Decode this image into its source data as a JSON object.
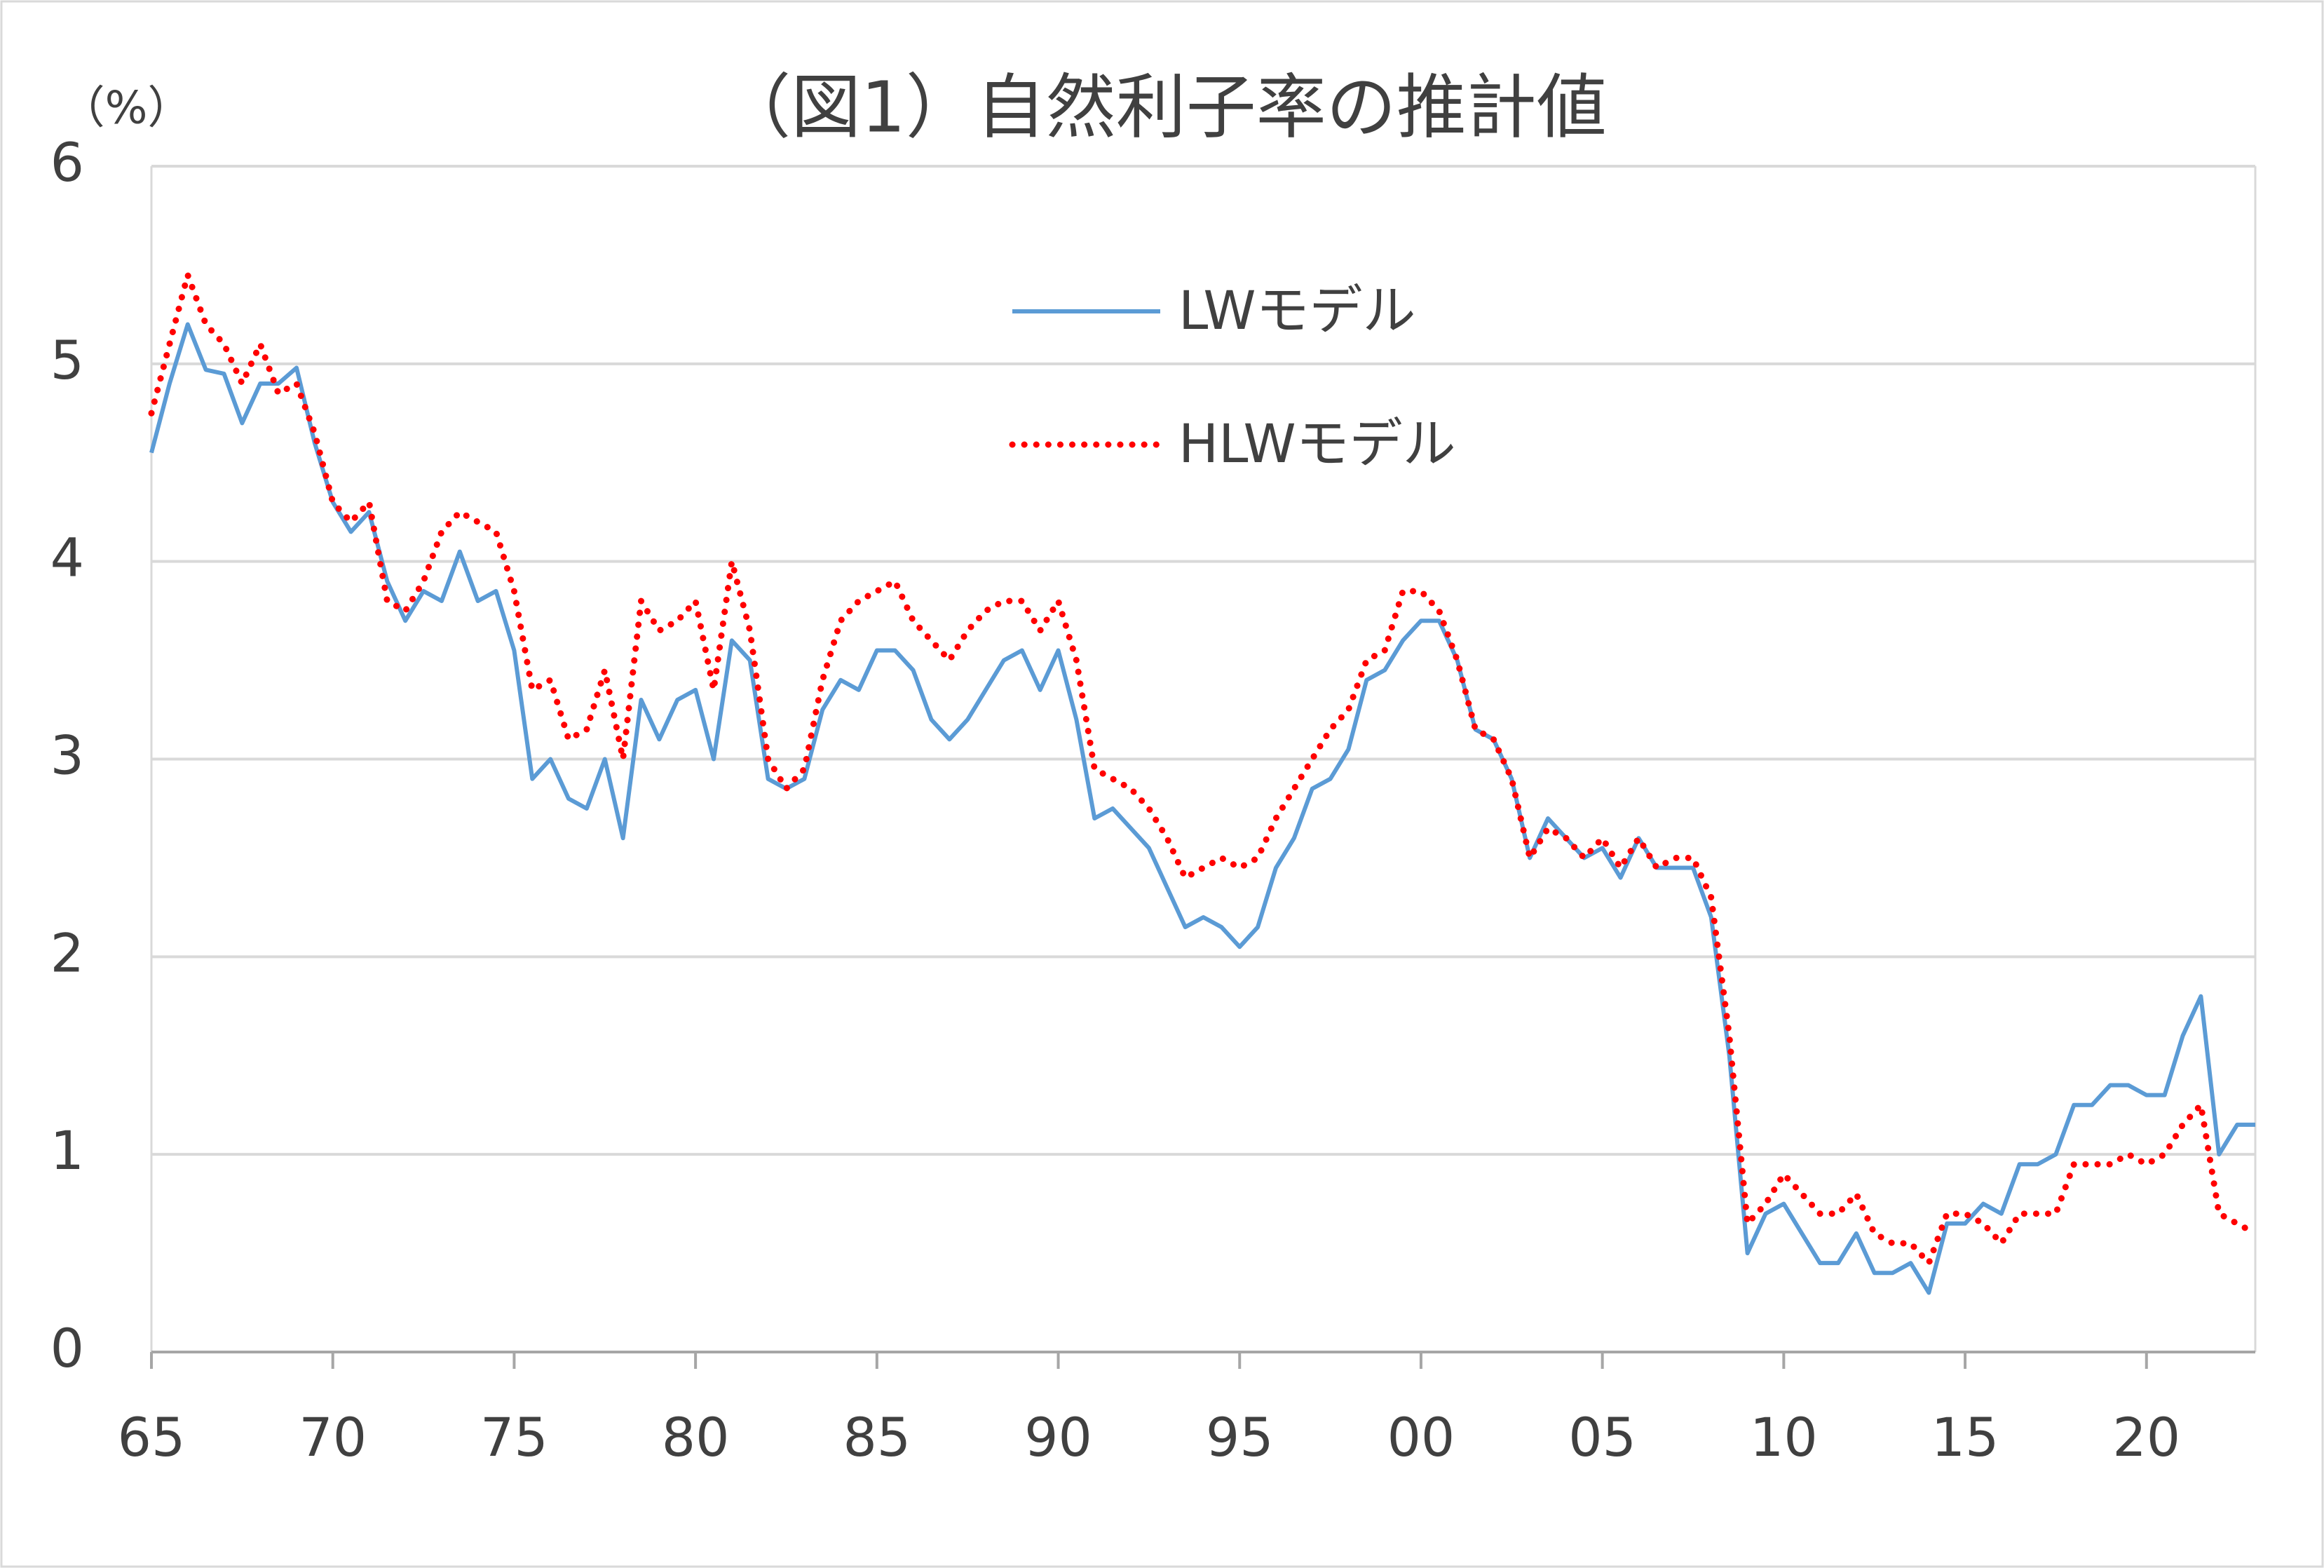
{
  "chart_data": {
    "type": "line",
    "title": "（図1）自然利子率の推計値",
    "y_unit_label": "（%）",
    "x": [
      1965,
      1965.5,
      1966,
      1966.5,
      1967,
      1967.5,
      1968,
      1968.5,
      1969,
      1969.5,
      1970,
      1970.5,
      1971,
      1971.5,
      1972,
      1972.5,
      1973,
      1973.5,
      1974,
      1974.5,
      1975,
      1975.5,
      1976,
      1976.5,
      1977,
      1977.5,
      1978,
      1978.5,
      1979,
      1979.5,
      1980,
      1980.5,
      1981,
      1981.5,
      1982,
      1982.5,
      1983,
      1983.5,
      1984,
      1984.5,
      1985,
      1985.5,
      1986,
      1986.5,
      1987,
      1987.5,
      1988,
      1988.5,
      1989,
      1989.5,
      1990,
      1990.5,
      1991,
      1991.5,
      1992,
      1992.5,
      1993,
      1993.5,
      1994,
      1994.5,
      1995,
      1995.5,
      1996,
      1996.5,
      1997,
      1997.5,
      1998,
      1998.5,
      1999,
      1999.5,
      2000,
      2000.5,
      2001,
      2001.5,
      2002,
      2002.5,
      2003,
      2003.5,
      2004,
      2004.5,
      2005,
      2005.5,
      2006,
      2006.5,
      2007,
      2007.5,
      2008,
      2008.5,
      2009,
      2009.5,
      2010,
      2010.5,
      2011,
      2011.5,
      2012,
      2012.5,
      2013,
      2013.5,
      2014,
      2014.5,
      2015,
      2015.5,
      2016,
      2016.5,
      2017,
      2017.5,
      2018,
      2018.5,
      2019,
      2019.5,
      2020,
      2020.5,
      2021,
      2021.5,
      2022,
      2022.5,
      2023
    ],
    "series": [
      {
        "name": "LWモデル",
        "color": "#5b9bd5",
        "style": "solid",
        "values": [
          4.55,
          4.9,
          5.2,
          4.97,
          4.95,
          4.7,
          4.9,
          4.9,
          4.98,
          4.6,
          4.3,
          4.15,
          4.25,
          3.9,
          3.7,
          3.85,
          3.8,
          4.05,
          3.8,
          3.85,
          3.55,
          2.9,
          3.0,
          2.8,
          2.75,
          3.0,
          2.6,
          3.3,
          3.1,
          3.3,
          3.35,
          3.0,
          3.6,
          3.5,
          2.9,
          2.85,
          2.9,
          3.25,
          3.4,
          3.35,
          3.55,
          3.55,
          3.45,
          3.2,
          3.1,
          3.2,
          3.35,
          3.5,
          3.55,
          3.35,
          3.55,
          3.2,
          2.7,
          2.75,
          2.65,
          2.55,
          2.35,
          2.15,
          2.2,
          2.15,
          2.05,
          2.15,
          2.45,
          2.6,
          2.85,
          2.9,
          3.05,
          3.4,
          3.45,
          3.6,
          3.7,
          3.7,
          3.5,
          3.15,
          3.1,
          2.9,
          2.5,
          2.7,
          2.6,
          2.5,
          2.55,
          2.4,
          2.6,
          2.45,
          2.45,
          2.45,
          2.2,
          1.5,
          0.5,
          0.7,
          0.75,
          0.6,
          0.45,
          0.45,
          0.6,
          0.4,
          0.4,
          0.45,
          0.3,
          0.65,
          0.65,
          0.75,
          0.7,
          0.95,
          0.95,
          1.0,
          1.25,
          1.25,
          1.35,
          1.35,
          1.3,
          1.3,
          1.6,
          1.8,
          1.0,
          1.15,
          1.15
        ]
      },
      {
        "name": "HLWモデル",
        "color": "#ff0000",
        "style": "dotted",
        "values": [
          4.75,
          5.1,
          5.45,
          5.2,
          5.1,
          4.9,
          5.1,
          4.85,
          4.9,
          4.65,
          4.3,
          4.2,
          4.3,
          3.8,
          3.75,
          3.9,
          4.15,
          4.25,
          4.2,
          4.15,
          3.85,
          3.35,
          3.4,
          3.1,
          3.15,
          3.45,
          3.0,
          3.8,
          3.65,
          3.7,
          3.8,
          3.35,
          4.0,
          3.65,
          3.0,
          2.85,
          2.95,
          3.4,
          3.7,
          3.8,
          3.85,
          3.9,
          3.7,
          3.6,
          3.5,
          3.65,
          3.75,
          3.8,
          3.8,
          3.65,
          3.8,
          3.5,
          2.95,
          2.9,
          2.85,
          2.75,
          2.6,
          2.4,
          2.45,
          2.5,
          2.45,
          2.5,
          2.7,
          2.85,
          3.0,
          3.15,
          3.25,
          3.5,
          3.55,
          3.85,
          3.85,
          3.75,
          3.5,
          3.15,
          3.1,
          2.9,
          2.5,
          2.65,
          2.6,
          2.5,
          2.6,
          2.45,
          2.6,
          2.45,
          2.5,
          2.5,
          2.3,
          1.6,
          0.65,
          0.75,
          0.9,
          0.8,
          0.7,
          0.7,
          0.8,
          0.6,
          0.55,
          0.55,
          0.45,
          0.7,
          0.7,
          0.65,
          0.55,
          0.7,
          0.7,
          0.7,
          0.95,
          0.95,
          0.95,
          1.0,
          0.95,
          1.0,
          1.15,
          1.25,
          0.7,
          0.65,
          0.6
        ]
      }
    ],
    "xlim": [
      1965,
      2023
    ],
    "xticks": [
      {
        "value": 1965,
        "label": "65"
      },
      {
        "value": 1970,
        "label": "70"
      },
      {
        "value": 1975,
        "label": "75"
      },
      {
        "value": 1980,
        "label": "80"
      },
      {
        "value": 1985,
        "label": "85"
      },
      {
        "value": 1990,
        "label": "90"
      },
      {
        "value": 1995,
        "label": "95"
      },
      {
        "value": 2000,
        "label": "00"
      },
      {
        "value": 2005,
        "label": "05"
      },
      {
        "value": 2010,
        "label": "10"
      },
      {
        "value": 2015,
        "label": "15"
      },
      {
        "value": 2020,
        "label": "20"
      }
    ],
    "ylim": [
      0,
      6
    ],
    "yticks": [
      0,
      1,
      2,
      3,
      4,
      5,
      6
    ],
    "grid": true
  }
}
